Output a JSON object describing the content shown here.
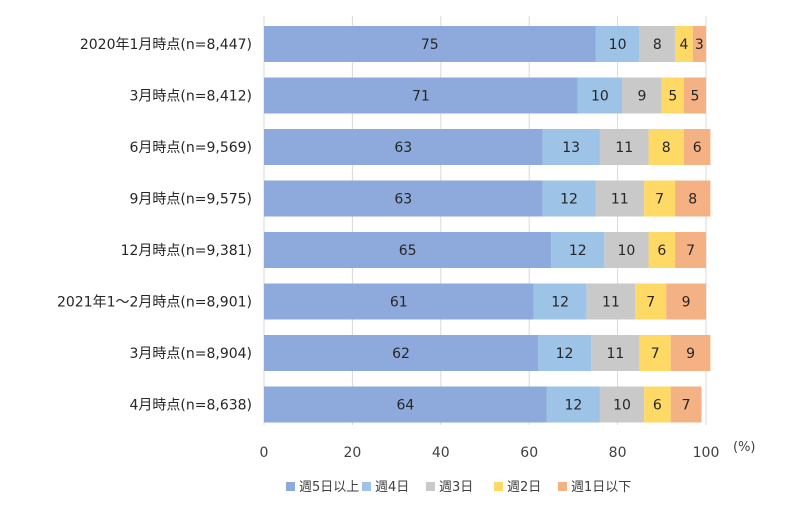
{
  "chart_data": {
    "type": "bar",
    "orientation": "horizontal",
    "stacked": true,
    "unit_label": "(%)",
    "xlim": [
      0,
      100
    ],
    "x_ticks": [
      "0",
      "20",
      "40",
      "60",
      "80",
      "100"
    ],
    "categories": [
      "2020年1月時点(n=8,447)",
      "3月時点(n=8,412)",
      "6月時点(n=9,569)",
      "9月時点(n=9,575)",
      "12月時点(n=9,381)",
      "2021年1～2月時点(n=8,901)",
      "3月時点(n=8,904)",
      "4月時点(n=8,638)"
    ],
    "series": [
      {
        "name": "週5日以上",
        "color": "#8eaadc",
        "values": [
          75,
          71,
          63,
          63,
          65,
          61,
          62,
          64
        ]
      },
      {
        "name": "週4日",
        "color": "#9dc3e6",
        "values": [
          10,
          10,
          13,
          12,
          12,
          12,
          12,
          12
        ]
      },
      {
        "name": "週3日",
        "color": "#c9c9c9",
        "values": [
          8,
          9,
          11,
          11,
          10,
          11,
          11,
          10
        ]
      },
      {
        "name": "週2日",
        "color": "#ffd966",
        "values": [
          4,
          5,
          8,
          7,
          6,
          7,
          7,
          6
        ]
      },
      {
        "name": "週1日以下",
        "color": "#f4b183",
        "values": [
          3,
          5,
          6,
          8,
          7,
          9,
          9,
          7
        ]
      }
    ],
    "legend_position": "bottom",
    "grid": true
  }
}
